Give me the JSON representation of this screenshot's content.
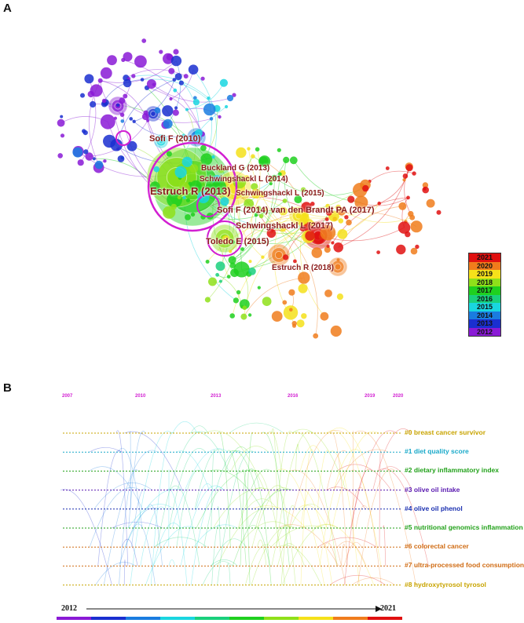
{
  "panel_a": {
    "label": "A",
    "node_labels": [
      {
        "text": "Sofi F (2010)",
        "size": "m"
      },
      {
        "text": "Buckland G (2013)",
        "size": "s"
      },
      {
        "text": "Schwingshackl L (2014)",
        "size": "s"
      },
      {
        "text": "Estruch R (2013)",
        "size": "l"
      },
      {
        "text": "Schwingshackl L (2015)",
        "size": "s"
      },
      {
        "text": "Sofi F (2014) van den Brandt PA (2017)",
        "size": "m"
      },
      {
        "text": "Schwingshackl L (2017)",
        "size": "m"
      },
      {
        "text": "Toledo E (2015)",
        "size": "m"
      },
      {
        "text": "Estruch R (2018)",
        "size": "s"
      }
    ],
    "legend": [
      {
        "year": "2021",
        "color": "#e01010"
      },
      {
        "year": "2020",
        "color": "#f07c1c"
      },
      {
        "year": "2019",
        "color": "#f5e11a"
      },
      {
        "year": "2018",
        "color": "#8fe01a"
      },
      {
        "year": "2017",
        "color": "#1fd01f"
      },
      {
        "year": "2016",
        "color": "#1ad07c"
      },
      {
        "year": "2015",
        "color": "#19d6e0"
      },
      {
        "year": "2014",
        "color": "#1a7ce0"
      },
      {
        "year": "2013",
        "color": "#1a2fd0"
      },
      {
        "year": "2012",
        "color": "#8a1ad6"
      }
    ]
  },
  "panel_b": {
    "label": "B",
    "year_ticks": [
      "2007",
      "2010",
      "2013",
      "2016",
      "2019",
      "2020"
    ],
    "clusters": [
      {
        "label": "#0 breast cancer survivor",
        "color": "#c8a400"
      },
      {
        "label": "#1 diet quality score",
        "color": "#19a9c9"
      },
      {
        "label": "#2 dietary inflammatory index",
        "color": "#22a11a"
      },
      {
        "label": "#3 olive oil intake",
        "color": "#5a1ab0"
      },
      {
        "label": "#4 olive oil phenol",
        "color": "#1a2fb0"
      },
      {
        "label": "#5 nutritional genomics inflammation",
        "color": "#22a11a"
      },
      {
        "label": "#6 colorectal cancer",
        "color": "#d06c14"
      },
      {
        "label": "#7 ultra-processed food consumption",
        "color": "#d06c14"
      },
      {
        "label": "#8 hydroxytyrosol tyrosol",
        "color": "#c8a400"
      }
    ],
    "timeline_start": "2012",
    "timeline_end": "2021"
  }
}
